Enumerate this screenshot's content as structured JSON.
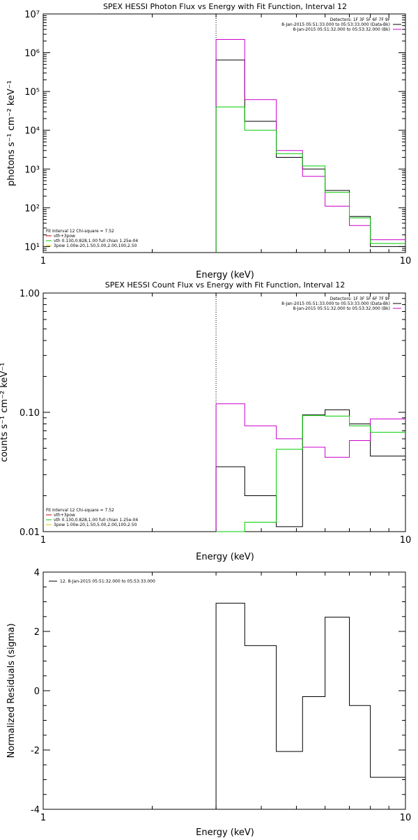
{
  "chart_data": [
    {
      "type": "line",
      "title": "SPEX HESSI Photon Flux vs Energy with Fit Function, Interval 12",
      "xlabel": "Energy (keV)",
      "ylabel": "photons s⁻¹ cm⁻² keV⁻¹",
      "xscale": "log",
      "yscale": "log",
      "xlim": [
        1,
        10
      ],
      "ylim": [
        7,
        10000000
      ],
      "x_ticks": [
        {
          "v": 1,
          "label": "1"
        },
        {
          "v": 10,
          "label": "10"
        }
      ],
      "y_ticks": [
        {
          "v": 10,
          "label": "10¹"
        },
        {
          "v": 100,
          "label": "10²"
        },
        {
          "v": 1000,
          "label": "10³"
        },
        {
          "v": 10000,
          "label": "10⁴"
        },
        {
          "v": 100000,
          "label": "10⁵"
        },
        {
          "v": 1000000,
          "label": "10⁶"
        },
        {
          "v": 10000000,
          "label": "10⁷"
        }
      ],
      "vline_x": 3.0,
      "legend_top": [
        {
          "text": "Detectors: 1F 3F 5F 6F 7F 9F",
          "color": ""
        },
        {
          "text": "8-Jan-2015 05:51:33.000 to 05:53:33.000 (Data-Bk)",
          "color": "#000000"
        },
        {
          "text": "8-Jan-2015 05:51:32.000 to 05:53:32.000 (Bk)",
          "color": "#cc00cc"
        }
      ],
      "legend_bottom": [
        {
          "text": "Fit Interval 12    Chi-square = 7.52",
          "color": ""
        },
        {
          "text": "vth+3pow",
          "color": "#cc0000"
        },
        {
          "text": "vth 0.130,0.828,1.00  full chian 1.25e-04",
          "color": "#00cc00"
        },
        {
          "text": "3pow 1.00e-20,1.50,5.00,2.00,100,2.50",
          "color": "#cccc00"
        }
      ],
      "series": [
        {
          "color": "#000000",
          "edges": [
            3.0,
            3.6,
            4.4,
            5.2,
            6.0,
            7.0,
            8.0,
            9.0,
            10.0
          ],
          "values": [
            650000,
            17000,
            2000,
            1000,
            280,
            60,
            10,
            10
          ]
        },
        {
          "color": "#cc00cc",
          "edges": [
            3.0,
            3.6,
            4.4,
            5.2,
            6.0,
            7.0,
            8.0,
            9.0,
            10.0
          ],
          "values": [
            2200000,
            62000,
            3000,
            650,
            110,
            35,
            15,
            15
          ]
        },
        {
          "color": "#00cc00",
          "edges": [
            3.0,
            3.6,
            4.4,
            5.2,
            6.0,
            7.0,
            8.0,
            9.0,
            10.0
          ],
          "values": [
            40000,
            10000,
            2500,
            1200,
            250,
            55,
            12,
            12
          ]
        }
      ]
    },
    {
      "type": "line",
      "title": "SPEX HESSI Count Flux vs Energy with Fit Function, Interval 12",
      "xlabel": "Energy (keV)",
      "ylabel": "counts s⁻¹ cm⁻² keV⁻¹",
      "xscale": "log",
      "yscale": "log",
      "xlim": [
        1,
        10
      ],
      "ylim": [
        0.01,
        1.0
      ],
      "x_ticks": [
        {
          "v": 1,
          "label": "1"
        },
        {
          "v": 10,
          "label": "10"
        }
      ],
      "y_ticks": [
        {
          "v": 0.01,
          "label": "0.01"
        },
        {
          "v": 0.1,
          "label": "0.10"
        },
        {
          "v": 1.0,
          "label": "1.00"
        }
      ],
      "vline_x": 3.0,
      "legend_top": [
        {
          "text": "Detectors: 1F 3F 5F 6F 7F 9F",
          "color": ""
        },
        {
          "text": "8-Jan-2015 05:51:33.000 to 05:53:33.000 (Data-Bk)",
          "color": "#000000"
        },
        {
          "text": "8-Jan-2015 05:51:32.000 to 05:53:32.000 (Bk)",
          "color": "#cc00cc"
        }
      ],
      "legend_bottom": [
        {
          "text": "Fit Interval 12    Chi-square = 7.52",
          "color": ""
        },
        {
          "text": "vth+3pow",
          "color": "#cc0000"
        },
        {
          "text": "vth 0.130,0.828,1.00  full chian 1.25e-04",
          "color": "#00cc00"
        },
        {
          "text": "3pow 1.00e-20,1.50,5.00,2.00,100,2.50",
          "color": "#cccc00"
        }
      ],
      "series": [
        {
          "color": "#000000",
          "edges": [
            3.0,
            3.6,
            4.4,
            5.2,
            6.0,
            7.0,
            8.0,
            9.0,
            10.0
          ],
          "values": [
            0.035,
            0.02,
            0.011,
            0.095,
            0.105,
            0.08,
            0.043,
            0.043
          ]
        },
        {
          "color": "#cc00cc",
          "edges": [
            3.0,
            3.6,
            4.4,
            5.2,
            6.0,
            7.0,
            8.0,
            9.0,
            10.0
          ],
          "values": [
            0.118,
            0.077,
            0.06,
            0.051,
            0.042,
            0.058,
            0.088,
            0.088
          ]
        },
        {
          "color": "#00cc00",
          "edges": [
            3.0,
            3.6,
            4.4,
            5.2,
            6.0,
            7.0,
            8.0,
            9.0,
            10.0
          ],
          "values": [
            0.004,
            0.012,
            0.049,
            0.094,
            0.093,
            0.077,
            0.068,
            0.068
          ]
        }
      ]
    },
    {
      "type": "line",
      "title": "",
      "xlabel": "Energy (keV)",
      "ylabel": "Normalized Residuals (sigma)",
      "xscale": "log",
      "yscale": "linear",
      "xlim": [
        1,
        10
      ],
      "ylim": [
        -4,
        4
      ],
      "x_ticks": [
        {
          "v": 1,
          "label": "1"
        },
        {
          "v": 10,
          "label": "10"
        }
      ],
      "y_ticks": [
        {
          "v": -4,
          "label": "-4"
        },
        {
          "v": -2,
          "label": "-2"
        },
        {
          "v": 0,
          "label": "0"
        },
        {
          "v": 2,
          "label": "2"
        },
        {
          "v": 4,
          "label": "4"
        }
      ],
      "vline_x": null,
      "legend_top": [],
      "legend_bottom": [],
      "legend_topleft": [
        {
          "text": "12.  8-Jan-2015 05:51:32.000 to 05:53:33.000",
          "color": "#000000"
        }
      ],
      "series": [
        {
          "color": "#000000",
          "edges": [
            3.0,
            3.6,
            4.4,
            5.2,
            6.0,
            7.0,
            8.0,
            9.0,
            10.0
          ],
          "values": [
            2.95,
            1.52,
            -2.05,
            -0.2,
            2.48,
            -0.5,
            -2.92,
            -2.92
          ]
        }
      ]
    }
  ]
}
